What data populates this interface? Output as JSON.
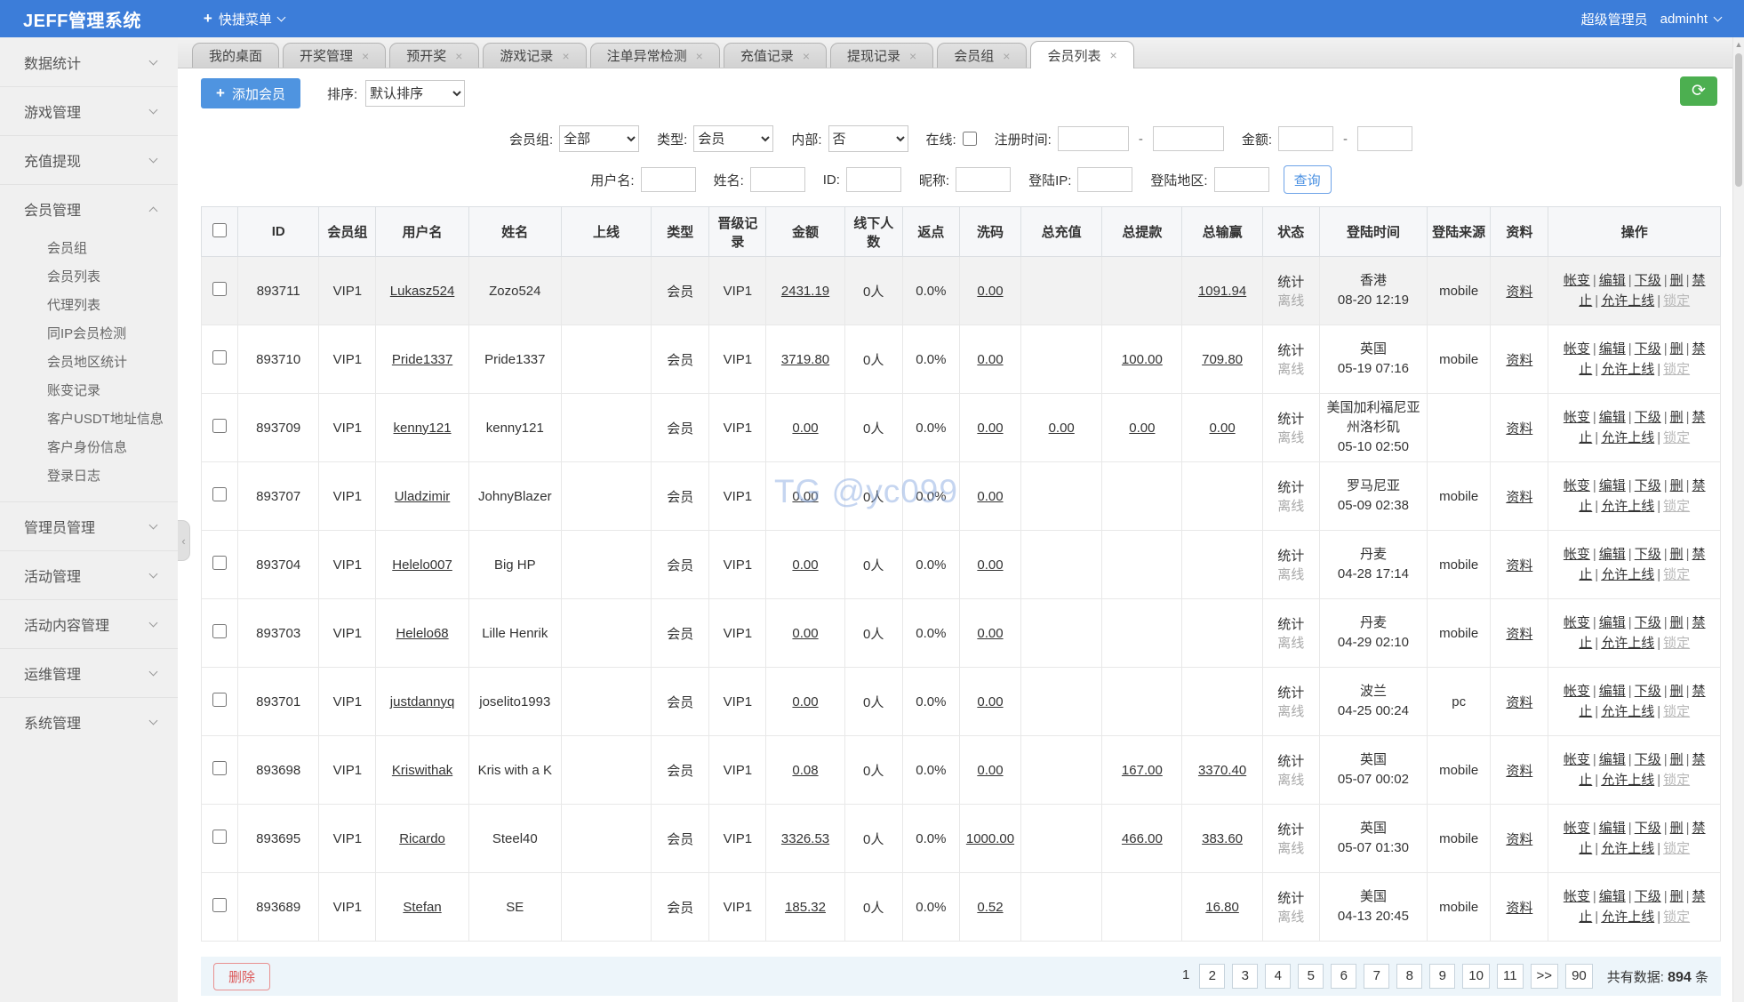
{
  "app": {
    "title": "JEFF管理系统",
    "quick_menu": "快捷菜单",
    "role": "超级管理员",
    "username": "adminht"
  },
  "icons": {
    "plus": "+",
    "refresh": "⟳",
    "close": "×",
    "pager_next": ">>",
    "collapse": "‹",
    "scroll_up": "▲",
    "scroll_down": "▼"
  },
  "colors": {
    "header_blue": "#3c7dd9",
    "button_blue": "#4f94e0",
    "link_blue": "#4a90e2",
    "green": "#4caf50",
    "danger_red": "#dd5a5a",
    "watermark_blue": "#8cace2"
  },
  "sidebar": {
    "sections": [
      {
        "label": "数据统计",
        "expanded": false
      },
      {
        "label": "游戏管理",
        "expanded": false
      },
      {
        "label": "充值提现",
        "expanded": false
      },
      {
        "label": "会员管理",
        "expanded": true,
        "items": [
          "会员组",
          "会员列表",
          "代理列表",
          "同IP会员检测",
          "会员地区统计",
          "账变记录",
          "客户USDT地址信息",
          "客户身份信息",
          "登录日志"
        ]
      },
      {
        "label": "管理员管理",
        "expanded": false
      },
      {
        "label": "活动管理",
        "expanded": false
      },
      {
        "label": "活动内容管理",
        "expanded": false
      },
      {
        "label": "运维管理",
        "expanded": false
      },
      {
        "label": "系统管理",
        "expanded": false
      }
    ]
  },
  "tabs": [
    {
      "label": "我的桌面",
      "closable": false,
      "active": false
    },
    {
      "label": "开奖管理",
      "closable": true,
      "active": false
    },
    {
      "label": "预开奖",
      "closable": true,
      "active": false
    },
    {
      "label": "游戏记录",
      "closable": true,
      "active": false
    },
    {
      "label": "注单异常检测",
      "closable": true,
      "active": false
    },
    {
      "label": "充值记录",
      "closable": true,
      "active": false
    },
    {
      "label": "提现记录",
      "closable": true,
      "active": false
    },
    {
      "label": "会员组",
      "closable": true,
      "active": false
    },
    {
      "label": "会员列表",
      "closable": true,
      "active": true
    }
  ],
  "toolbar": {
    "add_button": "添加会员",
    "sort_label": "排序:",
    "sort_value": "默认排序"
  },
  "filters": {
    "row1": {
      "group_label": "会员组:",
      "group_value": "全部",
      "type_label": "类型:",
      "type_value": "会员",
      "internal_label": "内部:",
      "internal_value": "否",
      "online_label": "在线:",
      "regtime_label": "注册时间:",
      "amount_label": "金额:",
      "dash": "-"
    },
    "row2": {
      "username_label": "用户名:",
      "name_label": "姓名:",
      "id_label": "ID:",
      "nick_label": "昵称:",
      "ip_label": "登陆IP:",
      "area_label": "登陆地区:",
      "search_button": "查询"
    }
  },
  "watermark": "TG @yc099",
  "table": {
    "columns": [
      "ID",
      "会员组",
      "用户名",
      "姓名",
      "上线",
      "类型",
      "晋级记录",
      "金额",
      "线下人数",
      "返点",
      "洗码",
      "总充值",
      "总提款",
      "总输赢",
      "状态",
      "登陆时间",
      "登陆来源",
      "资料",
      "操作"
    ],
    "ops": {
      "links": [
        "帐变",
        "编辑",
        "下级",
        "删",
        "禁止",
        "允许上线"
      ],
      "disabled": "锁定",
      "separator": "|"
    },
    "rows": [
      {
        "id": "893711",
        "group": "VIP1",
        "username": "Lukasz524",
        "name": "Zozo524",
        "upline": "",
        "type": "会员",
        "promotion": "VIP1",
        "balance": "2431.19",
        "downline": "0人",
        "rebate": "0.0%",
        "washcode": "0.00",
        "deposit": "",
        "withdraw": "",
        "winloss": "1091.94",
        "status": [
          "统计",
          "离线"
        ],
        "location": "香港",
        "time": "08-20 12:19",
        "source": "mobile",
        "profile": "资料",
        "highlight": true
      },
      {
        "id": "893710",
        "group": "VIP1",
        "username": "Pride1337",
        "name": "Pride1337",
        "upline": "",
        "type": "会员",
        "promotion": "VIP1",
        "balance": "3719.80",
        "downline": "0人",
        "rebate": "0.0%",
        "washcode": "0.00",
        "deposit": "",
        "withdraw": "100.00",
        "winloss": "709.80",
        "status": [
          "统计",
          "离线"
        ],
        "location": "英国",
        "time": "05-19 07:16",
        "source": "mobile",
        "profile": "资料",
        "highlight": false
      },
      {
        "id": "893709",
        "group": "VIP1",
        "username": "kenny121",
        "name": "kenny121",
        "upline": "",
        "type": "会员",
        "promotion": "VIP1",
        "balance": "0.00",
        "downline": "0人",
        "rebate": "0.0%",
        "washcode": "0.00",
        "deposit": "0.00",
        "withdraw": "0.00",
        "winloss": "0.00",
        "status": [
          "统计",
          "离线"
        ],
        "location": "美国加利福尼亚州洛杉矶",
        "time": "05-10 02:50",
        "source": "",
        "profile": "资料",
        "highlight": false
      },
      {
        "id": "893707",
        "group": "VIP1",
        "username": "Uladzimir",
        "name": "JohnyBlazer",
        "upline": "",
        "type": "会员",
        "promotion": "VIP1",
        "balance": "0.00",
        "downline": "0人",
        "rebate": "0.0%",
        "washcode": "0.00",
        "deposit": "",
        "withdraw": "",
        "winloss": "",
        "status": [
          "统计",
          "离线"
        ],
        "location": "罗马尼亚",
        "time": "05-09 02:38",
        "source": "mobile",
        "profile": "资料",
        "highlight": false
      },
      {
        "id": "893704",
        "group": "VIP1",
        "username": "Helelo007",
        "name": "Big HP",
        "upline": "",
        "type": "会员",
        "promotion": "VIP1",
        "balance": "0.00",
        "downline": "0人",
        "rebate": "0.0%",
        "washcode": "0.00",
        "deposit": "",
        "withdraw": "",
        "winloss": "",
        "status": [
          "统计",
          "离线"
        ],
        "location": "丹麦",
        "time": "04-28 17:14",
        "source": "mobile",
        "profile": "资料",
        "highlight": false
      },
      {
        "id": "893703",
        "group": "VIP1",
        "username": "Helelo68",
        "name": "Lille Henrik",
        "upline": "",
        "type": "会员",
        "promotion": "VIP1",
        "balance": "0.00",
        "downline": "0人",
        "rebate": "0.0%",
        "washcode": "0.00",
        "deposit": "",
        "withdraw": "",
        "winloss": "",
        "status": [
          "统计",
          "离线"
        ],
        "location": "丹麦",
        "time": "04-29 02:10",
        "source": "mobile",
        "profile": "资料",
        "highlight": false
      },
      {
        "id": "893701",
        "group": "VIP1",
        "username": "justdannyq",
        "name": "joselito1993",
        "upline": "",
        "type": "会员",
        "promotion": "VIP1",
        "balance": "0.00",
        "downline": "0人",
        "rebate": "0.0%",
        "washcode": "0.00",
        "deposit": "",
        "withdraw": "",
        "winloss": "",
        "status": [
          "统计",
          "离线"
        ],
        "location": "波兰",
        "time": "04-25 00:24",
        "source": "pc",
        "profile": "资料",
        "highlight": false
      },
      {
        "id": "893698",
        "group": "VIP1",
        "username": "Kriswithak",
        "name": "Kris with a K",
        "upline": "",
        "type": "会员",
        "promotion": "VIP1",
        "balance": "0.08",
        "downline": "0人",
        "rebate": "0.0%",
        "washcode": "0.00",
        "deposit": "",
        "withdraw": "167.00",
        "winloss": "3370.40",
        "status": [
          "统计",
          "离线"
        ],
        "location": "英国",
        "time": "05-07 00:02",
        "source": "mobile",
        "profile": "资料",
        "highlight": false
      },
      {
        "id": "893695",
        "group": "VIP1",
        "username": "Ricardo",
        "name": "Steel40",
        "upline": "",
        "type": "会员",
        "promotion": "VIP1",
        "balance": "3326.53",
        "downline": "0人",
        "rebate": "0.0%",
        "washcode": "1000.00",
        "deposit": "",
        "withdraw": "466.00",
        "winloss": "383.60",
        "status": [
          "统计",
          "离线"
        ],
        "location": "英国",
        "time": "05-07 01:30",
        "source": "mobile",
        "profile": "资料",
        "highlight": false
      },
      {
        "id": "893689",
        "group": "VIP1",
        "username": "Stefan",
        "name": "SE",
        "upline": "",
        "type": "会员",
        "promotion": "VIP1",
        "balance": "185.32",
        "downline": "0人",
        "rebate": "0.0%",
        "washcode": "0.52",
        "deposit": "",
        "withdraw": "",
        "winloss": "16.80",
        "status": [
          "统计",
          "离线"
        ],
        "location": "美国",
        "time": "04-13 20:45",
        "source": "mobile",
        "profile": "资料",
        "highlight": false
      }
    ]
  },
  "footer": {
    "delete_button": "删除",
    "pages": [
      "1",
      "2",
      "3",
      "4",
      "5",
      "6",
      "7",
      "8",
      "9",
      "10",
      "11",
      ">>",
      "90"
    ],
    "current_page": "1",
    "total_label": "共有数据:",
    "total_value": "894",
    "total_unit": "条"
  }
}
